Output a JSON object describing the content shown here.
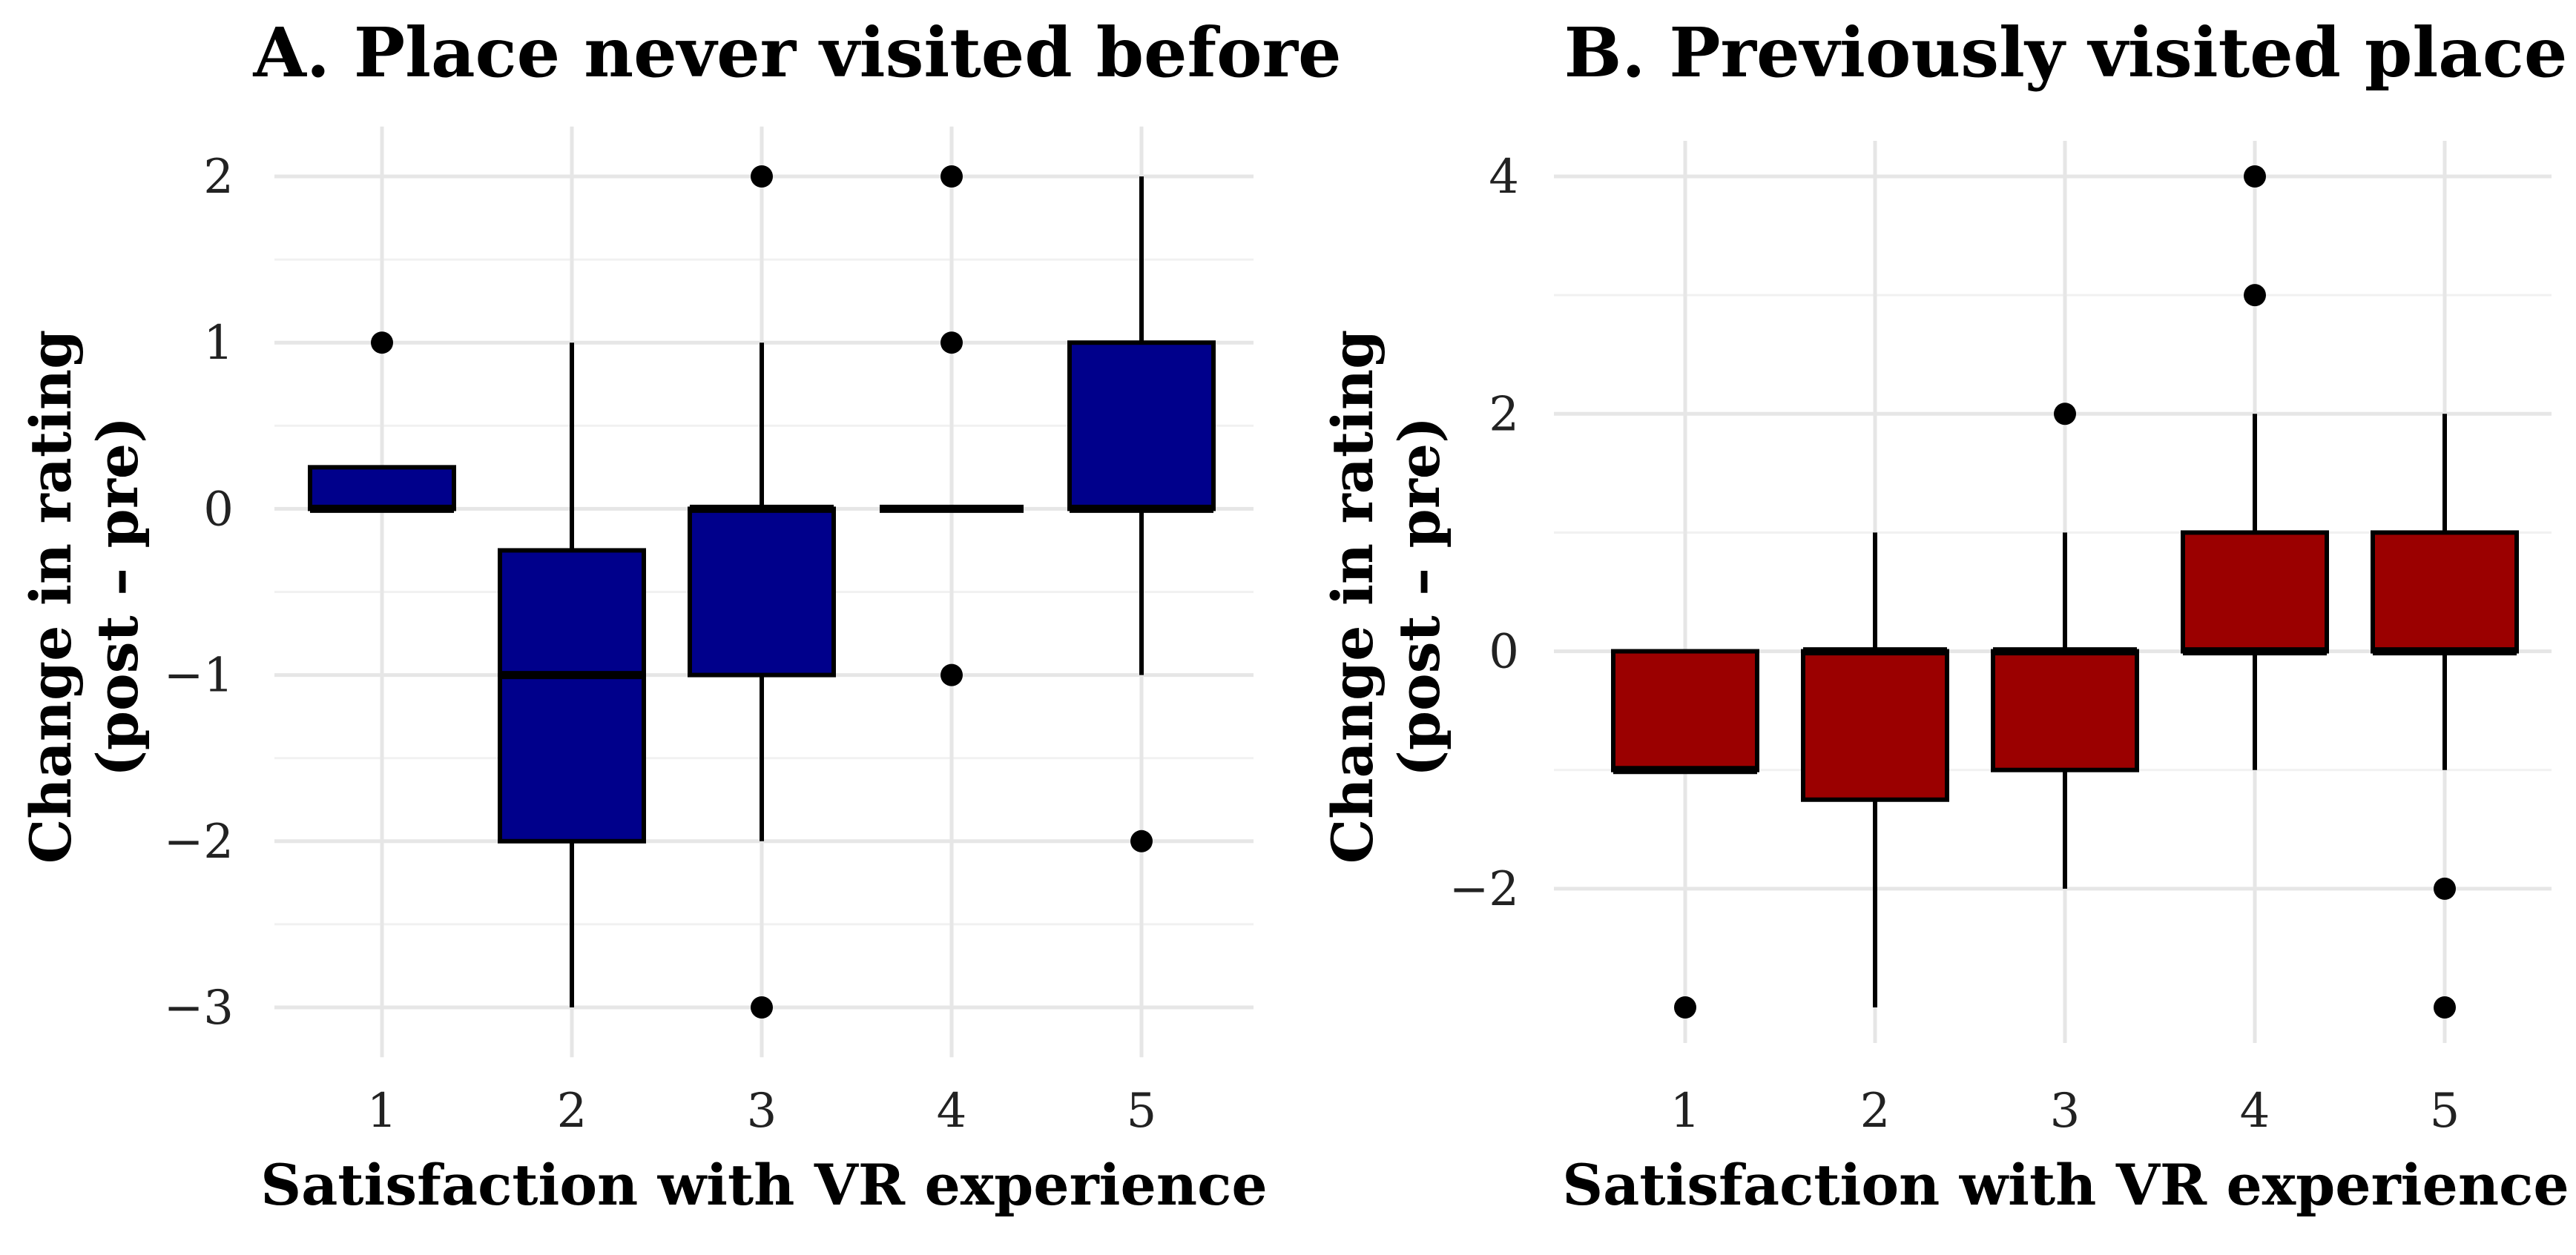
{
  "chart_data": [
    {
      "type": "boxplot",
      "title": "A. Place never visited before",
      "xlabel": "Satisfaction with VR experience",
      "ylabel_line1": "Change in rating",
      "ylabel_line2": "(post – pre)",
      "categories": [
        "1",
        "2",
        "3",
        "4",
        "5"
      ],
      "y_ticks": [
        2,
        1,
        0,
        -1,
        -2,
        -3
      ],
      "y_tick_labels": [
        "2",
        "1",
        "0",
        "−1",
        "−2",
        "−3"
      ],
      "ylim": [
        -3.3,
        2.3
      ],
      "fill": "#00008b",
      "boxes": [
        {
          "category": "1",
          "q1": 0,
          "median": 0,
          "q3": 0.25,
          "whisker_low": 0,
          "whisker_high": 0.25,
          "outliers": [
            1
          ]
        },
        {
          "category": "2",
          "q1": -2,
          "median": -1,
          "q3": -0.25,
          "whisker_low": -3,
          "whisker_high": 1,
          "outliers": []
        },
        {
          "category": "3",
          "q1": -1,
          "median": 0,
          "q3": 0,
          "whisker_low": -2,
          "whisker_high": 1,
          "outliers": [
            2,
            -3
          ]
        },
        {
          "category": "4",
          "q1": 0,
          "median": 0,
          "q3": 0,
          "whisker_low": 0,
          "whisker_high": 0,
          "outliers": [
            2,
            1,
            -1
          ]
        },
        {
          "category": "5",
          "q1": 0,
          "median": 0,
          "q3": 1,
          "whisker_low": -1,
          "whisker_high": 2,
          "outliers": [
            -2
          ]
        }
      ]
    },
    {
      "type": "boxplot",
      "title": "B. Previously visited place",
      "xlabel": "Satisfaction with VR experience",
      "ylabel_line1": "Change in rating",
      "ylabel_line2": "(post – pre)",
      "categories": [
        "1",
        "2",
        "3",
        "4",
        "5"
      ],
      "y_ticks": [
        4,
        2,
        0,
        -2
      ],
      "y_tick_labels": [
        "4",
        "2",
        "0",
        "−2"
      ],
      "ylim": [
        -3.3,
        4.3
      ],
      "fill": "#9b0000",
      "boxes": [
        {
          "category": "1",
          "q1": -1,
          "median": -1,
          "q3": 0,
          "whisker_low": -1,
          "whisker_high": 0,
          "outliers": [
            -3
          ]
        },
        {
          "category": "2",
          "q1": -1.25,
          "median": 0,
          "q3": 0,
          "whisker_low": -3,
          "whisker_high": 1,
          "outliers": []
        },
        {
          "category": "3",
          "q1": -1,
          "median": 0,
          "q3": 0,
          "whisker_low": -2,
          "whisker_high": 1,
          "outliers": [
            2
          ]
        },
        {
          "category": "4",
          "q1": 0,
          "median": 0,
          "q3": 1,
          "whisker_low": -1,
          "whisker_high": 2,
          "outliers": [
            4,
            3
          ]
        },
        {
          "category": "5",
          "q1": 0,
          "median": 0,
          "q3": 1,
          "whisker_low": -1,
          "whisker_high": 2,
          "outliers": [
            -2,
            -3
          ]
        }
      ]
    }
  ]
}
